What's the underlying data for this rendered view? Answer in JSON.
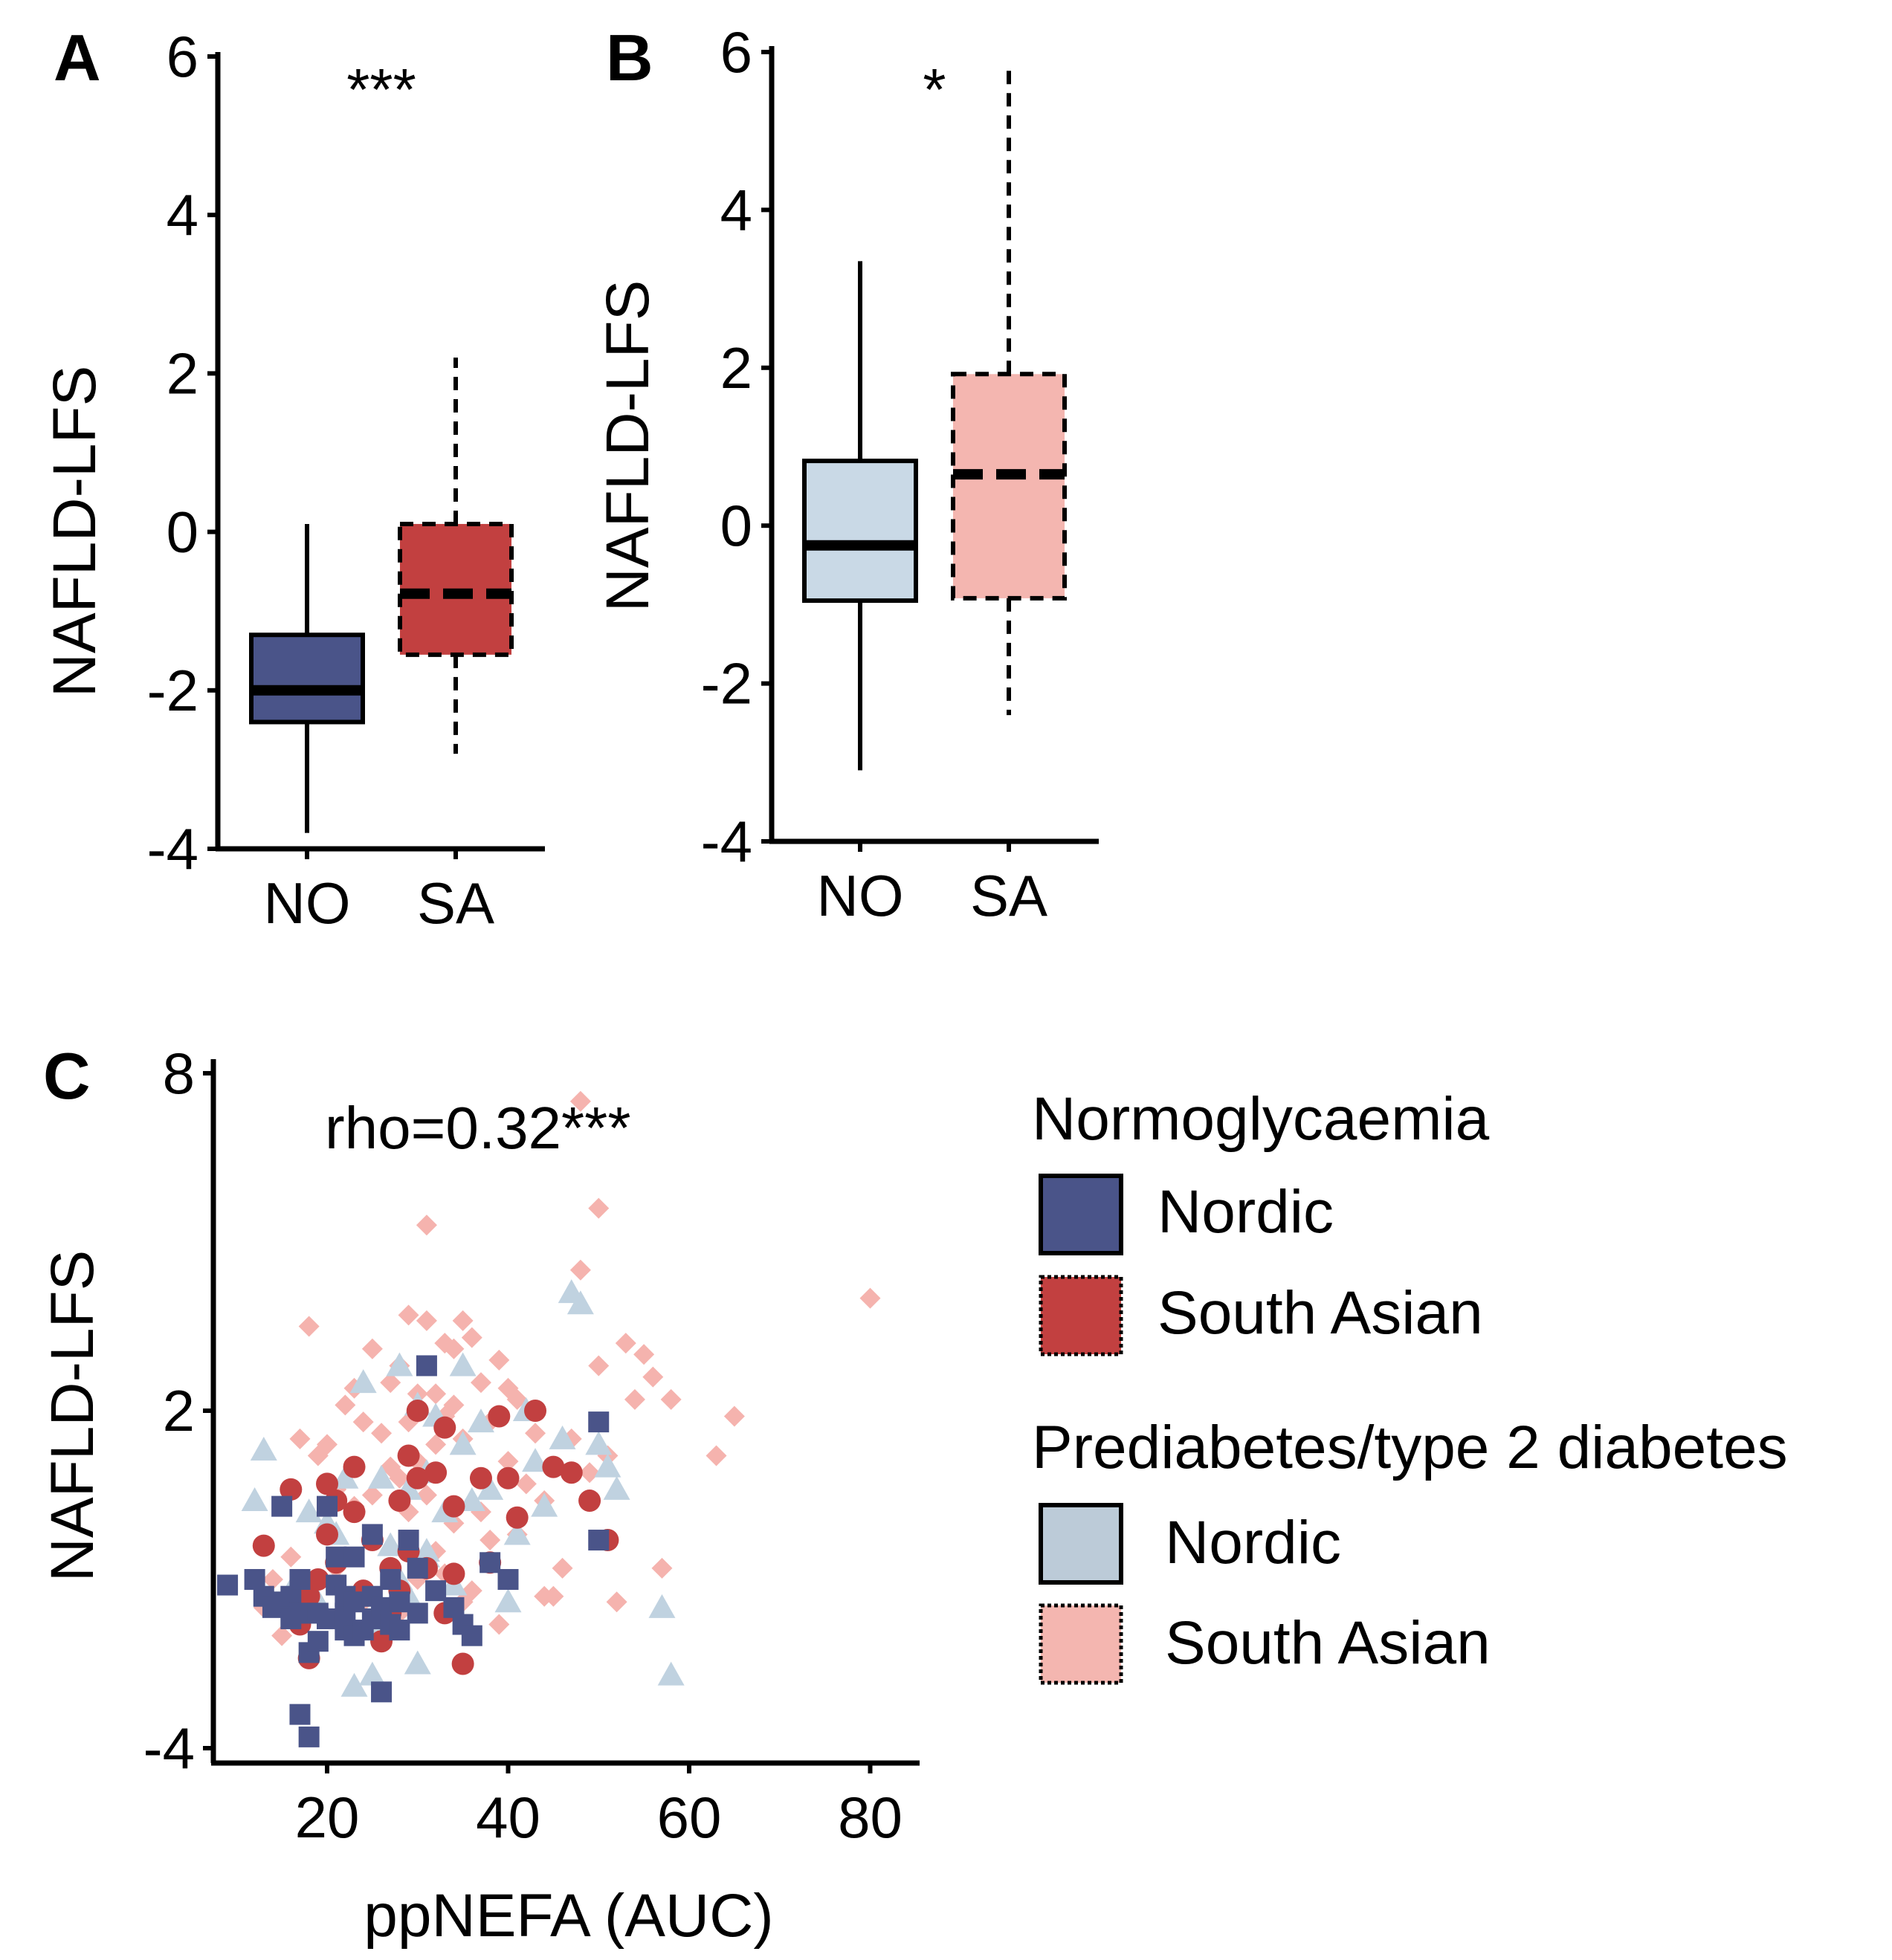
{
  "colors": {
    "nordic_normo": "#4a5489",
    "sa_normo": "#c24040",
    "nordic_pre": "#c9d9e6",
    "sa_pre": "#f4b6b0",
    "scatter_nordic_pre": "#c0d2e0",
    "scatter_sa_pre": "#f5b3ae",
    "axis": "#000000"
  },
  "chart_data": [
    {
      "panel": "A",
      "type": "box",
      "ylabel": "NAFLD-LFS",
      "ylim": [
        -4,
        6
      ],
      "yticks": [
        "-4",
        "-2",
        "0",
        "2",
        "4",
        "6"
      ],
      "categories": [
        "NO",
        "SA"
      ],
      "boxes": [
        {
          "group": "NO",
          "min": -3.8,
          "q1": -2.4,
          "median": -2.0,
          "q3": -1.3,
          "max": 0.1,
          "color_key": "nordic_normo",
          "dashed": false
        },
        {
          "group": "SA",
          "min": -2.8,
          "q1": -1.55,
          "median": -0.78,
          "q3": 0.1,
          "max": 2.2,
          "color_key": "sa_normo",
          "dashed": true
        }
      ],
      "significance": "***"
    },
    {
      "panel": "B",
      "type": "box",
      "ylabel": "NAFLD-LFS",
      "ylim": [
        -4,
        6
      ],
      "yticks": [
        "-4",
        "-2",
        "0",
        "2",
        "4",
        "6"
      ],
      "categories": [
        "NO",
        "SA"
      ],
      "boxes": [
        {
          "group": "NO",
          "min": -3.1,
          "q1": -0.95,
          "median": -0.25,
          "q3": 0.82,
          "max": 3.35,
          "color_key": "nordic_pre",
          "dashed": false
        },
        {
          "group": "SA",
          "min": -2.4,
          "q1": -0.92,
          "median": 0.65,
          "q3": 1.92,
          "max": 5.8,
          "color_key": "sa_pre",
          "dashed": true
        }
      ],
      "significance": "*"
    },
    {
      "panel": "C",
      "type": "scatter",
      "xlabel": "ppNEFA (AUC)",
      "ylabel": "NAFLD-LFS",
      "xlim": [
        8,
        86
      ],
      "ylim": [
        -4,
        8
      ],
      "xticks": [
        "20",
        "40",
        "60",
        "80"
      ],
      "yticks": [
        "-4",
        "2",
        "8"
      ],
      "annotation": "rho=0.32***",
      "legend": {
        "groups": [
          {
            "title": "Normoglycaemia",
            "items": [
              {
                "label": "Nordic",
                "color_key": "nordic_normo",
                "dotted": false
              },
              {
                "label": "South Asian",
                "color_key": "sa_normo",
                "dotted": true
              }
            ]
          },
          {
            "title": "Prediabetes/type 2 diabetes",
            "items": [
              {
                "label": "Nordic",
                "color_key": "nordic_pre",
                "dotted": false
              },
              {
                "label": "South Asian",
                "color_key": "sa_pre",
                "dotted": true
              }
            ]
          }
        ]
      },
      "series": [
        {
          "name": "Nordic normoglycaemia",
          "marker": "square",
          "color_key": "nordic_normo",
          "x": [
            9,
            12,
            13,
            14,
            15,
            15,
            16,
            16,
            17,
            17,
            17,
            18,
            18,
            18,
            19,
            19,
            20,
            20,
            21,
            21,
            22,
            22,
            22,
            23,
            23,
            23,
            24,
            25,
            25,
            25,
            26,
            26,
            27,
            27,
            28,
            28,
            29,
            30,
            30,
            31,
            32,
            34,
            35,
            36,
            38,
            40,
            50,
            50
          ],
          "y": [
            -1.1,
            -1.0,
            -1.3,
            -1.5,
            0.3,
            -1.4,
            -1.7,
            -1.3,
            -3.4,
            -1.6,
            -1.0,
            -3.8,
            -1.6,
            -2.3,
            -2.1,
            -1.6,
            0.3,
            -1.7,
            -1.1,
            -0.6,
            -1.9,
            -1.6,
            -1.3,
            -2.0,
            -1.4,
            -0.6,
            -1.9,
            -1.7,
            -1.3,
            -0.2,
            -3.0,
            -1.5,
            -1.8,
            -1.0,
            -1.9,
            -1.4,
            -0.3,
            -1.6,
            -0.8,
            2.8,
            -1.2,
            -1.5,
            -1.8,
            -2.0,
            -0.7,
            -1.0,
            1.8,
            -0.3
          ]
        },
        {
          "name": "South Asian normoglycaemia",
          "marker": "circle",
          "color_key": "sa_normo",
          "x": [
            13,
            16,
            17,
            18,
            18,
            19,
            20,
            20,
            21,
            21,
            23,
            23,
            24,
            25,
            26,
            27,
            27,
            28,
            28,
            29,
            29,
            30,
            30,
            31,
            32,
            33,
            33,
            34,
            34,
            35,
            37,
            38,
            39,
            40,
            41,
            43,
            45,
            47,
            49,
            51
          ],
          "y": [
            -0.4,
            0.6,
            -1.8,
            -2.4,
            -1.3,
            -1.0,
            0.7,
            -0.2,
            0.4,
            -0.7,
            1.0,
            0.2,
            -1.2,
            -0.3,
            -2.1,
            -1.6,
            -0.8,
            0.4,
            -1.2,
            1.2,
            -0.5,
            2.0,
            0.8,
            -0.8,
            0.9,
            -1.6,
            1.7,
            -0.9,
            0.3,
            -2.5,
            0.8,
            -0.7,
            1.9,
            0.8,
            0.1,
            2.0,
            1.0,
            0.9,
            0.4,
            -0.3
          ]
        },
        {
          "name": "Nordic prediabetes/type 2 diabetes",
          "marker": "triangle",
          "color_key": "scatter_nordic_pre",
          "x": [
            12,
            13,
            16,
            18,
            19,
            20,
            21,
            22,
            23,
            24,
            25,
            26,
            26,
            27,
            28,
            28,
            29,
            29,
            30,
            30,
            31,
            31,
            31,
            32,
            33,
            34,
            35,
            35,
            36,
            37,
            38,
            40,
            41,
            42,
            43,
            44,
            46,
            47,
            48,
            50,
            51,
            52,
            57,
            58
          ],
          "y": [
            0.4,
            1.3,
            -1.2,
            0.2,
            -1.4,
            0.0,
            -0.2,
            0.8,
            -2.9,
            2.5,
            -2.7,
            0.8,
            -1.8,
            -0.4,
            -1.0,
            2.8,
            0.6,
            -1.3,
            2.1,
            -2.5,
            0.9,
            -0.6,
            -0.5,
            1.9,
            0.2,
            -1.1,
            1.4,
            2.8,
            0.4,
            1.8,
            0.6,
            -1.4,
            -0.2,
            2.0,
            1.1,
            0.3,
            1.5,
            4.1,
            3.9,
            1.4,
            1.0,
            0.6,
            -1.5,
            -2.7
          ]
        },
        {
          "name": "South Asian prediabetes/type 2 diabetes",
          "marker": "diamond",
          "color_key": "scatter_sa_pre",
          "x": [
            13,
            14,
            15,
            16,
            17,
            18,
            19,
            20,
            21,
            21,
            22,
            22,
            23,
            23,
            24,
            24,
            25,
            25,
            26,
            26,
            27,
            27,
            27,
            28,
            28,
            28,
            29,
            29,
            29,
            30,
            30,
            30,
            31,
            31,
            31,
            32,
            32,
            32,
            33,
            33,
            33,
            34,
            34,
            34,
            35,
            35,
            35,
            36,
            36,
            37,
            37,
            38,
            38,
            39,
            39,
            40,
            40,
            41,
            41,
            42,
            43,
            44,
            44,
            45,
            46,
            47,
            48,
            48,
            49,
            50,
            50,
            51,
            52,
            53,
            54,
            55,
            56,
            57,
            58,
            63,
            65,
            80
          ],
          "y": [
            -1.5,
            -1.0,
            -2.0,
            -0.6,
            1.5,
            3.5,
            1.2,
            1.4,
            0.6,
            -0.8,
            2.1,
            -1.9,
            2.4,
            0.3,
            1.8,
            -1.4,
            3.1,
            0.5,
            1.6,
            -2.1,
            2.5,
            1.0,
            -1.0,
            2.8,
            0.8,
            -1.6,
            3.7,
            1.8,
            0.2,
            2.3,
            1.1,
            -1.0,
            5.3,
            3.6,
            0.5,
            2.3,
            1.4,
            -0.5,
            3.2,
            1.9,
            -0.9,
            3.1,
            2.1,
            0.0,
            3.6,
            1.5,
            -1.4,
            3.3,
            -1.2,
            2.5,
            0.2,
            1.8,
            -0.3,
            2.9,
            -1.8,
            2.4,
            1.1,
            -0.2,
            2.2,
            0.7,
            1.6,
            -1.3,
            0.4,
            -1.3,
            -0.8,
            1.5,
            7.5,
            4.5,
            0.9,
            5.6,
            2.8,
            1.2,
            -1.4,
            3.2,
            2.2,
            3.0,
            2.6,
            -0.8,
            2.2,
            1.2,
            1.9,
            4.0
          ]
        }
      ]
    }
  ]
}
